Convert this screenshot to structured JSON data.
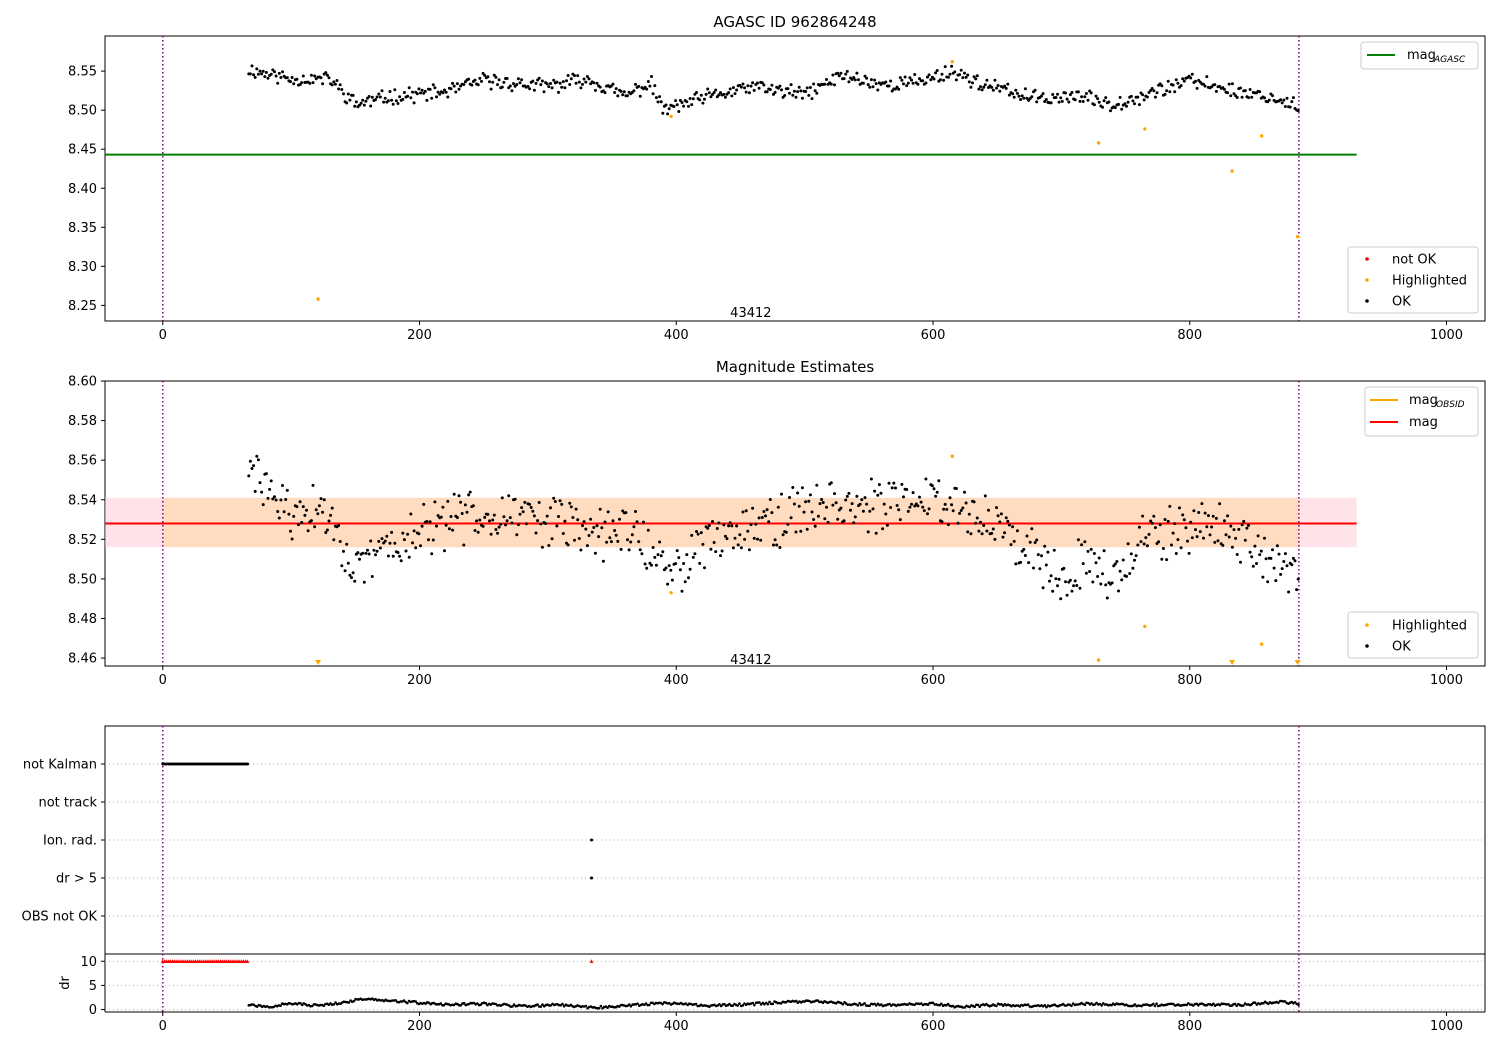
{
  "figure": {
    "panel1_title": "AGASC ID 962864248",
    "panel2_title": "Magnitude Estimates",
    "obsid_label": "43412"
  },
  "chart_data": [
    {
      "type": "scatter",
      "title": "AGASC ID 962864248",
      "xlim": [
        -45,
        1030
      ],
      "ylim": [
        8.23,
        8.595
      ],
      "x_ticks": [
        0,
        200,
        400,
        600,
        800,
        1000
      ],
      "y_ticks": [
        8.25,
        8.3,
        8.35,
        8.4,
        8.45,
        8.5,
        8.55
      ],
      "y_tick_labels": [
        "8.25",
        "8.30",
        "8.35",
        "8.40",
        "8.45",
        "8.50",
        "8.55"
      ],
      "x_tick_labels": [
        "0",
        "200",
        "400",
        "600",
        "800",
        "1000"
      ],
      "vlines": [
        0,
        885
      ],
      "text_annotation": {
        "text": "43412",
        "x": 442,
        "y": 8.24
      },
      "hline": {
        "name": "mag_AGASC",
        "label_main": "mag",
        "label_sub": "AGASC",
        "y": 8.443,
        "x_range": [
          -45,
          930
        ],
        "color": "#008000"
      },
      "line_legend": [
        {
          "label_main": "mag",
          "label_sub": "AGASC",
          "color": "#008000"
        }
      ],
      "point_legend": [
        {
          "label": "not OK",
          "color": "#ff0000"
        },
        {
          "label": "Highlighted",
          "color": "#ffa500"
        },
        {
          "label": "OK",
          "color": "#000000"
        }
      ],
      "series": [
        {
          "name": "OK",
          "color": "#000000",
          "x": [
            67,
            100,
            130,
            150,
            180,
            220,
            250,
            300,
            330,
            360,
            380,
            390,
            420,
            460,
            500,
            530,
            560,
            590,
            615,
            640,
            680,
            710,
            740,
            770,
            800,
            840,
            860,
            885
          ],
          "y": [
            8.552,
            8.54,
            8.54,
            8.508,
            8.518,
            8.523,
            8.538,
            8.53,
            8.54,
            8.518,
            8.535,
            8.5,
            8.515,
            8.53,
            8.52,
            8.545,
            8.532,
            8.537,
            8.55,
            8.532,
            8.515,
            8.518,
            8.508,
            8.522,
            8.538,
            8.523,
            8.518,
            8.505
          ]
        },
        {
          "name": "Highlighted",
          "color": "#ffa500",
          "x": [
            121,
            396,
            615,
            729,
            765,
            833,
            856,
            884
          ],
          "y": [
            8.258,
            8.492,
            8.562,
            8.458,
            8.476,
            8.422,
            8.467,
            8.338
          ]
        }
      ]
    },
    {
      "type": "scatter",
      "title": "Magnitude Estimates",
      "xlim": [
        -45,
        1030
      ],
      "ylim": [
        8.456,
        8.6
      ],
      "x_ticks": [
        0,
        200,
        400,
        600,
        800,
        1000
      ],
      "y_ticks": [
        8.46,
        8.48,
        8.5,
        8.52,
        8.54,
        8.56,
        8.58,
        8.6
      ],
      "y_tick_labels": [
        "8.46",
        "8.48",
        "8.50",
        "8.52",
        "8.54",
        "8.56",
        "8.58",
        "8.60"
      ],
      "x_tick_labels": [
        "0",
        "200",
        "400",
        "600",
        "800",
        "1000"
      ],
      "vlines": [
        0,
        885
      ],
      "text_annotation": {
        "text": "43412",
        "x": 442,
        "y": 8.459
      },
      "mag_line": {
        "name": "mag",
        "y": 8.528,
        "x_range": [
          -45,
          930
        ],
        "color": "#ff0000"
      },
      "obsid_line": {
        "name": "mag_OBSID",
        "y": 8.528,
        "x_range": [
          0,
          885
        ],
        "color": "#ffa500"
      },
      "band_outer": {
        "y_low": 8.516,
        "y_high": 8.541,
        "x_range": [
          -45,
          930
        ],
        "color": "#ffc0cb"
      },
      "band_inner": {
        "y_low": 8.516,
        "y_high": 8.541,
        "x_range": [
          0,
          885
        ],
        "color": "#ffdab9"
      },
      "line_legend": [
        {
          "label_main": "mag",
          "label_sub": "OBSID",
          "color": "#ffa500"
        },
        {
          "label_main": "mag",
          "label_sub": "",
          "color": "#ff0000"
        }
      ],
      "point_legend": [
        {
          "label": "Highlighted",
          "color": "#ffa500"
        },
        {
          "label": "OK",
          "color": "#000000"
        }
      ],
      "series": [
        {
          "name": "OK",
          "color": "#000000",
          "x": [
            67,
            80,
            100,
            120,
            137,
            150,
            170,
            200,
            250,
            300,
            340,
            370,
            392,
            410,
            440,
            480,
            520,
            560,
            600,
            640,
            680,
            700,
            720,
            740,
            760,
            790,
            820,
            860,
            885
          ],
          "y": [
            8.554,
            8.548,
            8.53,
            8.535,
            8.525,
            8.5,
            8.515,
            8.523,
            8.535,
            8.53,
            8.522,
            8.525,
            8.5,
            8.512,
            8.525,
            8.53,
            8.54,
            8.535,
            8.543,
            8.53,
            8.515,
            8.5,
            8.512,
            8.498,
            8.52,
            8.522,
            8.53,
            8.508,
            8.503
          ]
        },
        {
          "name": "Highlighted",
          "color": "#ffa500",
          "x": [
            396,
            615,
            729,
            765,
            856
          ],
          "y": [
            8.493,
            8.562,
            8.459,
            8.476,
            8.467
          ]
        },
        {
          "name": "Highlighted (below axis)",
          "marker": "triangle-down",
          "color": "#ffa500",
          "x": [
            121,
            833,
            884
          ],
          "y": [
            8.457,
            8.457,
            8.457
          ]
        }
      ]
    },
    {
      "type": "scatter",
      "title": "",
      "xlim": [
        -45,
        1030
      ],
      "categories": [
        "not Kalman",
        "not track",
        "Ion. rad.",
        "dr > 5",
        "OBS not OK"
      ],
      "flag_points": [
        {
          "category": "not Kalman",
          "x_range": [
            0,
            66
          ]
        },
        {
          "category": "Ion. rad.",
          "x": [
            334
          ]
        },
        {
          "category": "dr > 5",
          "x": [
            334
          ]
        }
      ],
      "vlines": [
        0,
        885
      ]
    },
    {
      "type": "line",
      "title": "",
      "ylabel": "dr",
      "xlim": [
        -45,
        1030
      ],
      "ylim": [
        -0.5,
        11.5
      ],
      "x_ticks": [
        0,
        200,
        400,
        600,
        800,
        1000
      ],
      "x_tick_labels": [
        "0",
        "200",
        "400",
        "600",
        "800",
        "1000"
      ],
      "y_ticks": [
        0,
        5,
        10
      ],
      "y_tick_labels": [
        "0",
        "5",
        "10"
      ],
      "clipped_markers": {
        "color": "#ff0000",
        "x_range": [
          0,
          66
        ],
        "x_single": 334,
        "y": 10
      },
      "vlines": [
        0,
        885
      ],
      "series": [
        {
          "name": "dr",
          "color": "#000000",
          "x": [
            67,
            80,
            100,
            120,
            140,
            160,
            190,
            220,
            250,
            280,
            310,
            334,
            350,
            390,
            420,
            450,
            480,
            510,
            540,
            570,
            600,
            620,
            650,
            690,
            720,
            760,
            800,
            840,
            870,
            885
          ],
          "y": [
            1.0,
            0.5,
            1.3,
            0.8,
            1.5,
            2.3,
            1.6,
            1.0,
            1.2,
            0.7,
            1.0,
            0.4,
            0.6,
            1.4,
            0.8,
            1.0,
            1.5,
            1.7,
            1.1,
            0.9,
            1.3,
            0.6,
            1.0,
            0.7,
            1.2,
            0.9,
            1.1,
            1.0,
            1.6,
            1.2
          ]
        }
      ]
    }
  ]
}
